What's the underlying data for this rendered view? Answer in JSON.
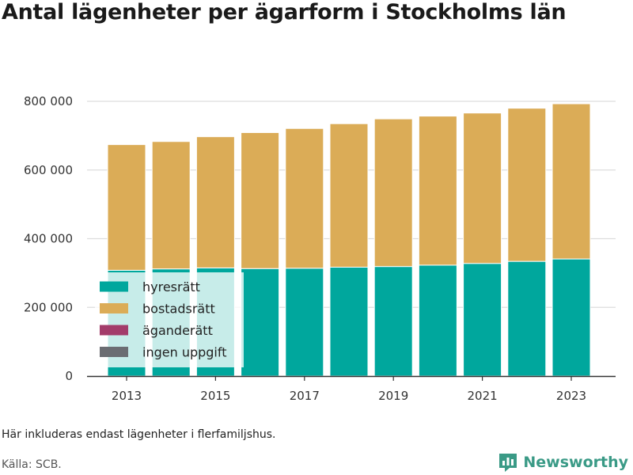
{
  "title": "Antal lägenheter per ägarform i Stockholms län",
  "note": "Här inkluderas endast lägenheter i flerfamiljshus.",
  "source": "Källa: SCB.",
  "brand": {
    "name": "Newsworthy",
    "icon": "newsworthy-logo-icon"
  },
  "colors": {
    "hyresratt": "#00a79d",
    "bostadsratt": "#dbac57",
    "aganderatt": "#a33c6a",
    "ingen_uppgift": "#6b6d72",
    "brand": "#3a9a86"
  },
  "chart_data": {
    "type": "bar",
    "stacked": true,
    "categories": [
      "2013",
      "2014",
      "2015",
      "2016",
      "2017",
      "2018",
      "2019",
      "2020",
      "2021",
      "2022",
      "2023"
    ],
    "x_tick_labels": [
      "2013",
      "2015",
      "2017",
      "2019",
      "2021",
      "2023"
    ],
    "ylim": [
      0,
      800000
    ],
    "y_ticks": [
      0,
      200000,
      400000,
      600000,
      800000
    ],
    "y_tick_labels": [
      "0",
      "200 000",
      "400 000",
      "600 000",
      "800 000"
    ],
    "grid": true,
    "legend_position": "bottom-left inside",
    "series": [
      {
        "name": "hyresrätt",
        "key": "hyresratt",
        "values": [
          308000,
          312000,
          315000,
          313000,
          314000,
          317000,
          319000,
          323000,
          328000,
          334000,
          341000
        ]
      },
      {
        "name": "bostadsrätt",
        "key": "bostadsratt",
        "values": [
          366000,
          371000,
          382000,
          396000,
          407000,
          418000,
          430000,
          434000,
          438000,
          446000,
          452000
        ]
      },
      {
        "name": "äganderätt",
        "key": "aganderatt",
        "values": [
          0,
          0,
          0,
          0,
          0,
          0,
          0,
          0,
          0,
          0,
          0
        ]
      },
      {
        "name": "ingen uppgift",
        "key": "ingen_uppgift",
        "values": [
          0,
          0,
          0,
          0,
          0,
          0,
          0,
          0,
          0,
          0,
          0
        ]
      }
    ]
  }
}
